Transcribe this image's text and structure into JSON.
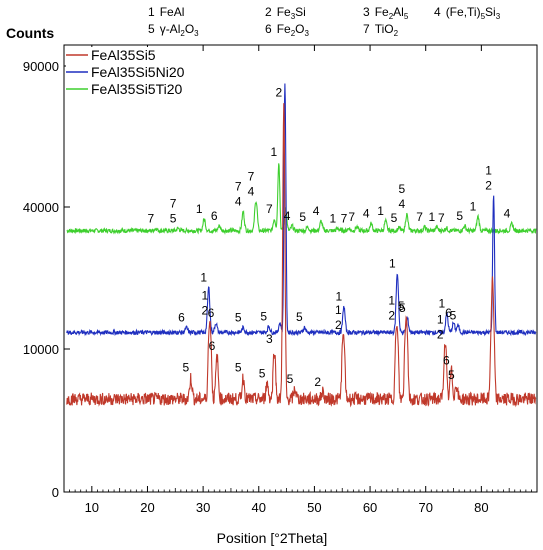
{
  "chart_data": {
    "type": "line",
    "ylabel": "Counts",
    "xlabel": "Position [°2Theta]",
    "xlim": [
      5,
      90
    ],
    "ylim": [
      0,
      100000
    ],
    "x_ticks": [
      10,
      20,
      30,
      40,
      50,
      60,
      70,
      80
    ],
    "y_ticks": [
      0,
      10000,
      40000,
      90000
    ],
    "x_tick_labels": [
      "10",
      "20",
      "30",
      "40",
      "50",
      "60",
      "70",
      "80"
    ],
    "y_tick_labels": [
      "0",
      "10000",
      "40000",
      "90000"
    ],
    "grid": false,
    "legend_position": "top-left",
    "phase_key": [
      {
        "num": "1",
        "label": "FeAl"
      },
      {
        "num": "2",
        "label": "Fe3Si"
      },
      {
        "num": "3",
        "label": "Fe2Al5"
      },
      {
        "num": "4",
        "label": "(Fe,Ti)5Si3"
      },
      {
        "num": "5",
        "label": "γ-Al2O3"
      },
      {
        "num": "6",
        "label": "Fe2O3"
      },
      {
        "num": "7",
        "label": "TiO2"
      }
    ],
    "series": [
      {
        "name": "FeAl35Si5",
        "color": "#c0392b",
        "baseline": 6500,
        "peaks": [
          {
            "x": 27.8,
            "y": 8000,
            "labels": [
              "5"
            ]
          },
          {
            "x": 31.2,
            "y": 16000,
            "labels": [
              "1",
              "2"
            ]
          },
          {
            "x": 32.5,
            "y": 9500,
            "labels": [
              "6"
            ]
          },
          {
            "x": 37.2,
            "y": 8000,
            "labels": [
              "5"
            ]
          },
          {
            "x": 41.5,
            "y": 7600,
            "labels": [
              "5"
            ]
          },
          {
            "x": 42.8,
            "y": 10000,
            "labels": [
              "3"
            ]
          },
          {
            "x": 44.5,
            "y": 77000,
            "labels": [
              "2"
            ]
          },
          {
            "x": 46.5,
            "y": 7200,
            "labels": [
              "5"
            ]
          },
          {
            "x": 51.5,
            "y": 7000,
            "labels": [
              "2"
            ]
          },
          {
            "x": 55.2,
            "y": 13000,
            "labels": [
              "1",
              "2"
            ]
          },
          {
            "x": 64.8,
            "y": 15000,
            "labels": [
              "1",
              "2"
            ]
          },
          {
            "x": 66.5,
            "y": 17000,
            "labels": [
              "5"
            ]
          },
          {
            "x": 73.5,
            "y": 11000,
            "labels": [
              "1",
              "2"
            ]
          },
          {
            "x": 74.6,
            "y": 8500,
            "labels": [
              "6"
            ]
          },
          {
            "x": 75.5,
            "y": 7500,
            "labels": [
              "5"
            ]
          },
          {
            "x": 82.0,
            "y": 25000,
            "labels": []
          }
        ]
      },
      {
        "name": "FeAl35Si5Ni20",
        "color": "#1f2fbf",
        "baseline": 13500,
        "peaks": [
          {
            "x": 27.0,
            "y": 14500,
            "labels": [
              "6"
            ]
          },
          {
            "x": 31.0,
            "y": 23000,
            "labels": [
              "1"
            ]
          },
          {
            "x": 32.3,
            "y": 15500,
            "labels": [
              "6"
            ]
          },
          {
            "x": 37.2,
            "y": 14500,
            "labels": [
              "5"
            ]
          },
          {
            "x": 41.8,
            "y": 14800,
            "labels": [
              "5"
            ]
          },
          {
            "x": 43.8,
            "y": 15500,
            "labels": []
          },
          {
            "x": 44.7,
            "y": 84000,
            "labels": []
          },
          {
            "x": 48.2,
            "y": 14600,
            "labels": [
              "5"
            ]
          },
          {
            "x": 55.3,
            "y": 19000,
            "labels": [
              "1"
            ]
          },
          {
            "x": 64.9,
            "y": 26000,
            "labels": [
              "1"
            ]
          },
          {
            "x": 66.7,
            "y": 16500,
            "labels": [
              "5"
            ]
          },
          {
            "x": 73.8,
            "y": 17500,
            "labels": [
              "1"
            ]
          },
          {
            "x": 75.0,
            "y": 15500,
            "labels": [
              "6"
            ]
          },
          {
            "x": 75.8,
            "y": 15000,
            "labels": [
              "5"
            ]
          },
          {
            "x": 82.2,
            "y": 44000,
            "labels": [
              "1",
              "2"
            ]
          }
        ]
      },
      {
        "name": "FeAl35Si5Ti20",
        "color": "#3ecf2e",
        "baseline": 35000,
        "peaks": [
          {
            "x": 21.5,
            "y": 35500,
            "labels": [
              "7"
            ]
          },
          {
            "x": 25.5,
            "y": 35500,
            "labels": [
              "7",
              "5"
            ]
          },
          {
            "x": 30.2,
            "y": 37500,
            "labels": [
              "1"
            ]
          },
          {
            "x": 32.9,
            "y": 36000,
            "labels": [
              "6"
            ]
          },
          {
            "x": 37.2,
            "y": 39000,
            "labels": [
              "7",
              "4"
            ]
          },
          {
            "x": 39.5,
            "y": 42000,
            "labels": [
              "7",
              "4"
            ]
          },
          {
            "x": 42.8,
            "y": 37500,
            "labels": [
              "7"
            ]
          },
          {
            "x": 43.6,
            "y": 56000,
            "labels": [
              "1"
            ]
          },
          {
            "x": 44.8,
            "y": 40000,
            "labels": []
          },
          {
            "x": 46.0,
            "y": 36000,
            "labels": [
              "4"
            ]
          },
          {
            "x": 48.8,
            "y": 35800,
            "labels": [
              "5"
            ]
          },
          {
            "x": 51.2,
            "y": 37000,
            "labels": [
              "4"
            ]
          },
          {
            "x": 54.2,
            "y": 35500,
            "labels": [
              "1"
            ]
          },
          {
            "x": 56.2,
            "y": 35500,
            "labels": [
              "7"
            ]
          },
          {
            "x": 57.6,
            "y": 35800,
            "labels": [
              "7"
            ]
          },
          {
            "x": 60.2,
            "y": 36500,
            "labels": [
              "4"
            ]
          },
          {
            "x": 62.8,
            "y": 37000,
            "labels": [
              "1"
            ]
          },
          {
            "x": 65.2,
            "y": 35600,
            "labels": [
              "5"
            ]
          },
          {
            "x": 66.6,
            "y": 38500,
            "labels": [
              "5",
              "4"
            ]
          },
          {
            "x": 69.8,
            "y": 35800,
            "labels": [
              "7"
            ]
          },
          {
            "x": 72.0,
            "y": 35800,
            "labels": [
              "1"
            ]
          },
          {
            "x": 73.7,
            "y": 35600,
            "labels": [
              "7"
            ]
          },
          {
            "x": 77.0,
            "y": 36000,
            "labels": [
              "5"
            ]
          },
          {
            "x": 79.4,
            "y": 38000,
            "labels": [
              "1"
            ]
          },
          {
            "x": 85.5,
            "y": 36500,
            "labels": [
              "4"
            ]
          }
        ]
      }
    ]
  }
}
